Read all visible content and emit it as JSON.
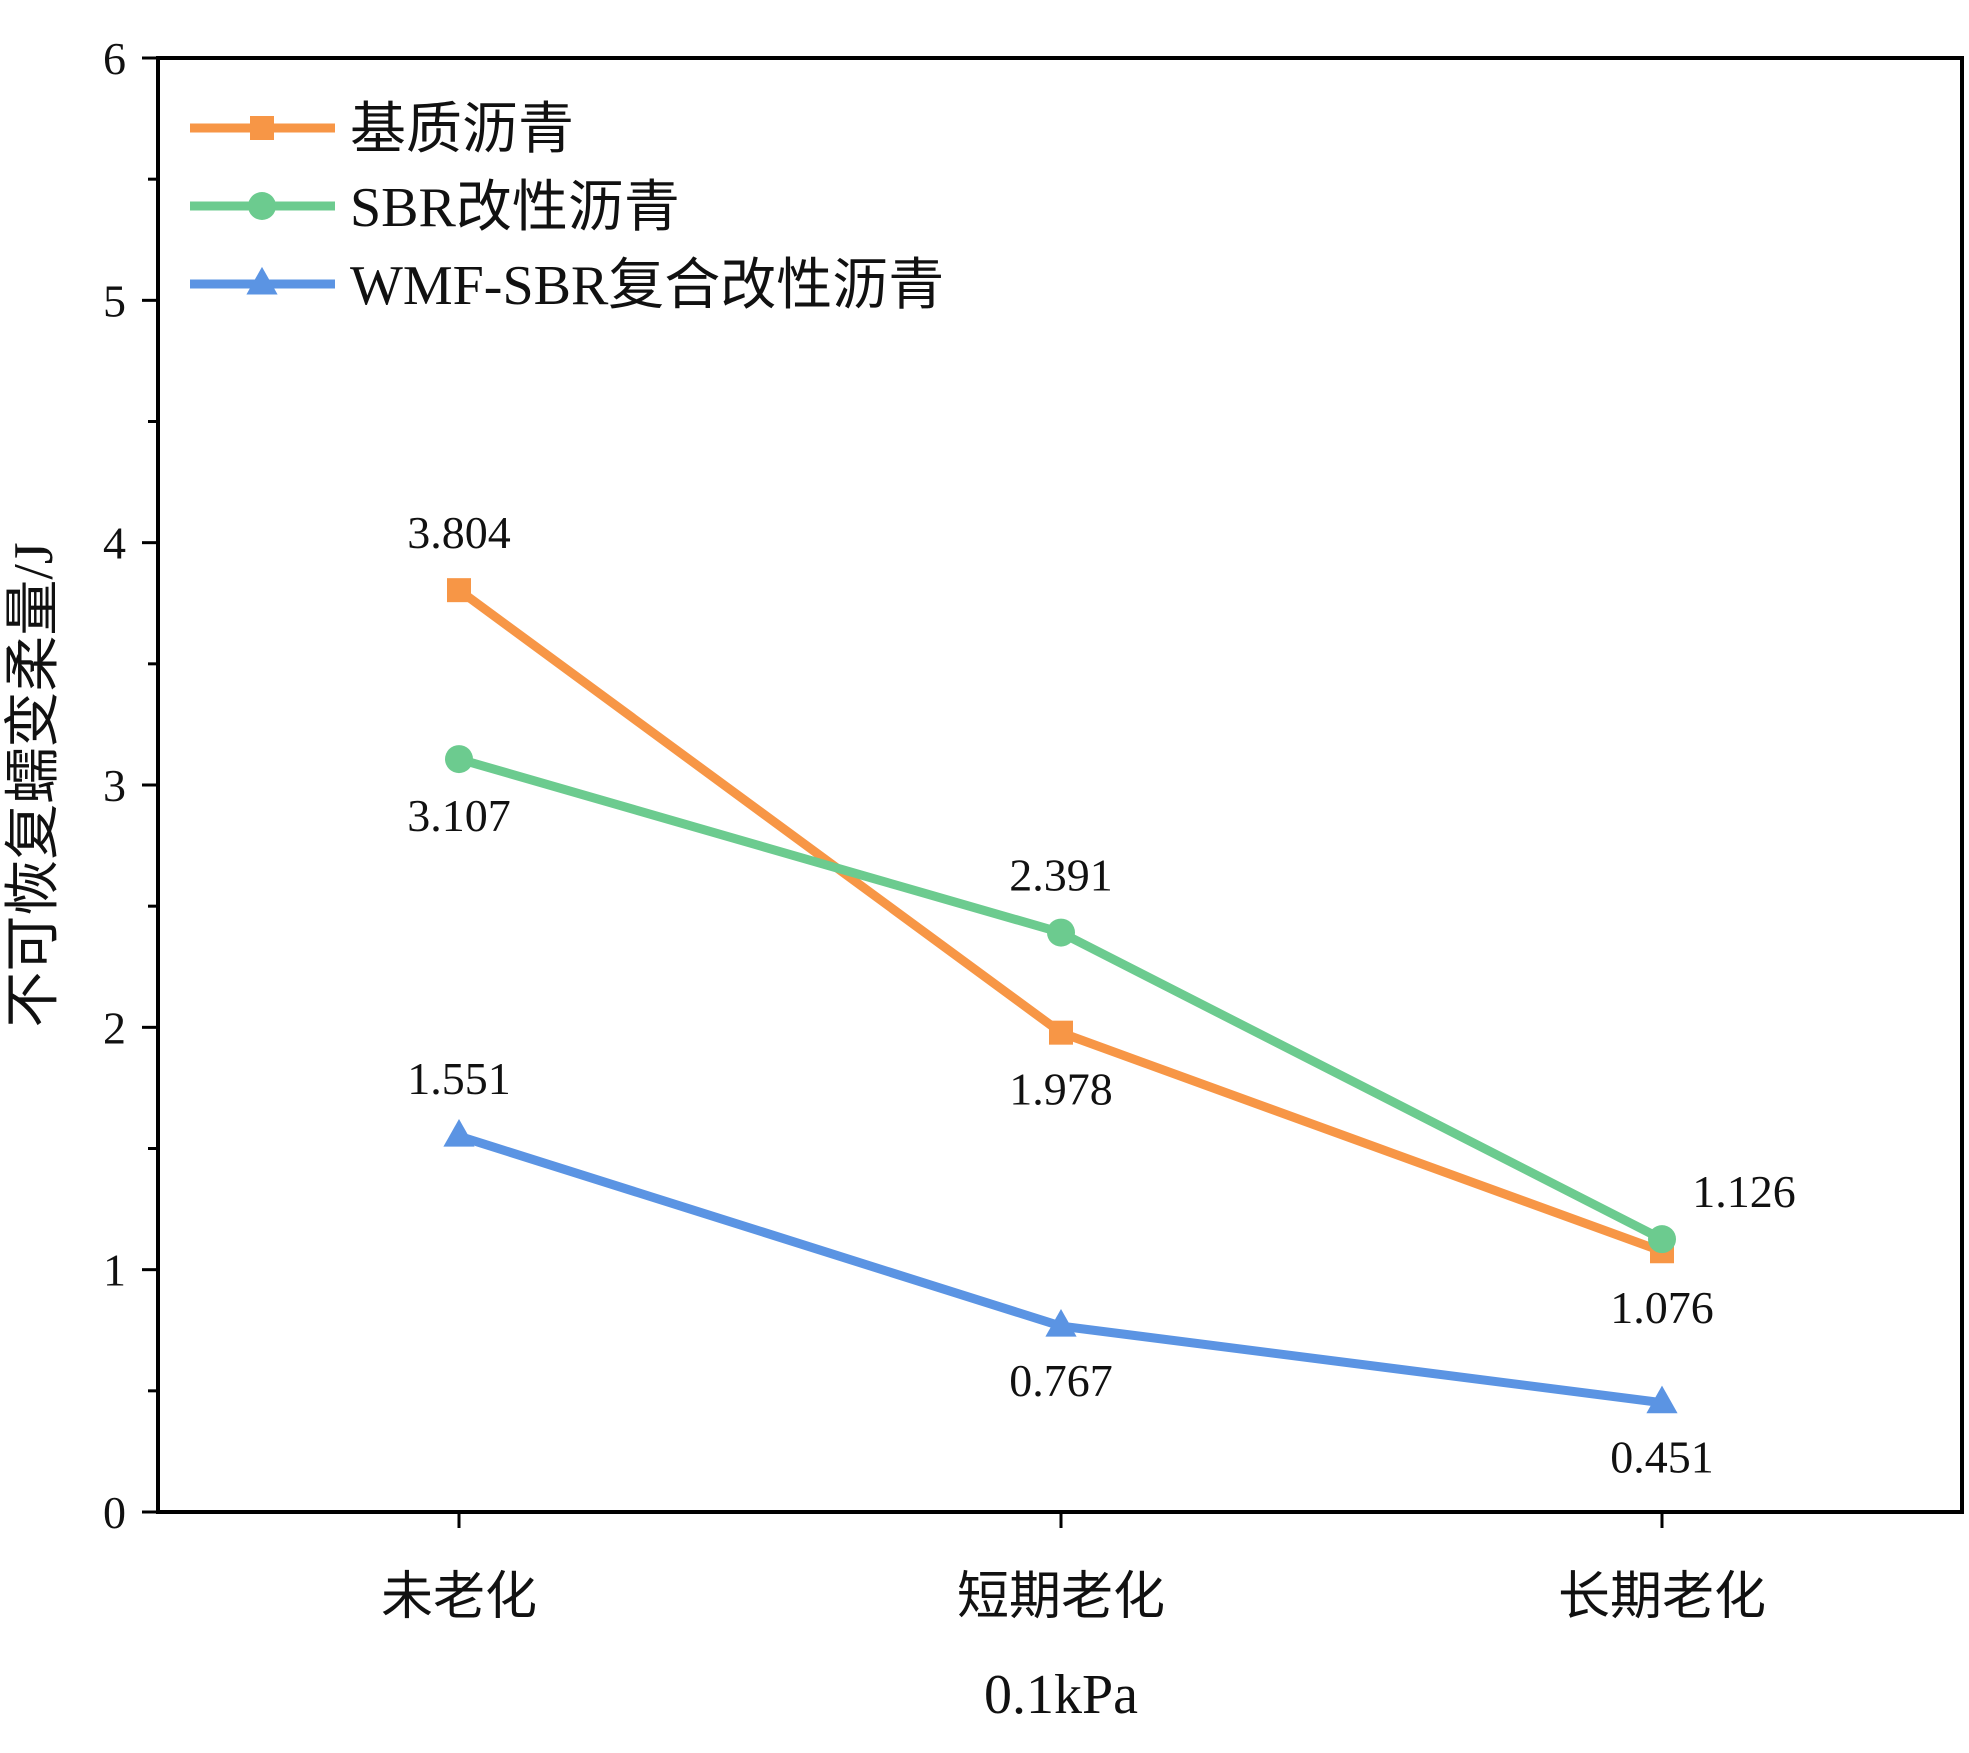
{
  "chart_data": {
    "type": "line",
    "title": "",
    "xlabel": "0.1kPa",
    "ylabel": "不可恢复蠕变柔量/J",
    "categories": [
      "未老化",
      "短期老化",
      "长期老化"
    ],
    "ylim": [
      0,
      6
    ],
    "yticks": [
      "0",
      "1",
      "2",
      "3",
      "4",
      "5",
      "6"
    ],
    "grid": false,
    "legend_position": "top-left",
    "series": [
      {
        "name": "基质沥青",
        "marker": "square",
        "color": "#F79646",
        "values": [
          3.804,
          1.978,
          1.076
        ],
        "labels": [
          "3.804",
          "1.978",
          "1.076"
        ],
        "label_positions": [
          "above",
          "below",
          "below"
        ]
      },
      {
        "name": "SBR改性沥青",
        "marker": "circle",
        "color": "#6CCB8F",
        "values": [
          3.107,
          2.391,
          1.126
        ],
        "labels": [
          "3.107",
          "2.391",
          "1.126"
        ],
        "label_positions": [
          "below",
          "above",
          "above-right"
        ]
      },
      {
        "name": "WMF-SBR复合改性沥青",
        "marker": "triangle",
        "color": "#5B94E3",
        "values": [
          1.551,
          0.767,
          0.451
        ],
        "labels": [
          "1.551",
          "0.767",
          "0.451"
        ],
        "label_positions": [
          "above",
          "below",
          "below"
        ]
      }
    ]
  }
}
